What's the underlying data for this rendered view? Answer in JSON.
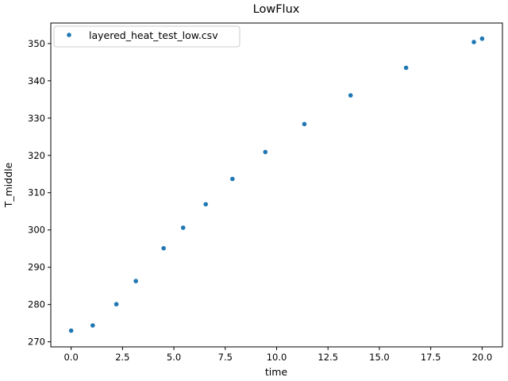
{
  "chart_data": {
    "type": "scatter",
    "title": "LowFlux",
    "xlabel": "time",
    "ylabel": "T_middle",
    "xlim": [
      -0.99,
      20.99
    ],
    "ylim": [
      268.65,
      355.5
    ],
    "xticks": [
      0.0,
      2.5,
      5.0,
      7.5,
      10.0,
      12.5,
      15.0,
      17.5,
      20.0
    ],
    "xtick_labels": [
      "0.0",
      "2.5",
      "5.0",
      "7.5",
      "10.0",
      "12.5",
      "15.0",
      "17.5",
      "20.0"
    ],
    "yticks": [
      270,
      280,
      290,
      300,
      310,
      320,
      330,
      340,
      350
    ],
    "ytick_labels": [
      "270",
      "280",
      "290",
      "300",
      "310",
      "320",
      "330",
      "340",
      "350"
    ],
    "grid": false,
    "legend_position": "upper-left",
    "series": [
      {
        "name": "layered_heat_test_low.csv",
        "color": "#1f77b4",
        "marker": "circle",
        "x": [
          0.0,
          1.05,
          2.2,
          3.15,
          4.5,
          5.45,
          6.55,
          7.85,
          9.45,
          11.35,
          13.6,
          16.3,
          19.6,
          20.0
        ],
        "y": [
          273.0,
          274.4,
          280.1,
          286.3,
          295.1,
          300.6,
          306.9,
          313.7,
          320.9,
          328.4,
          336.1,
          343.5,
          350.4,
          351.3
        ]
      }
    ]
  }
}
